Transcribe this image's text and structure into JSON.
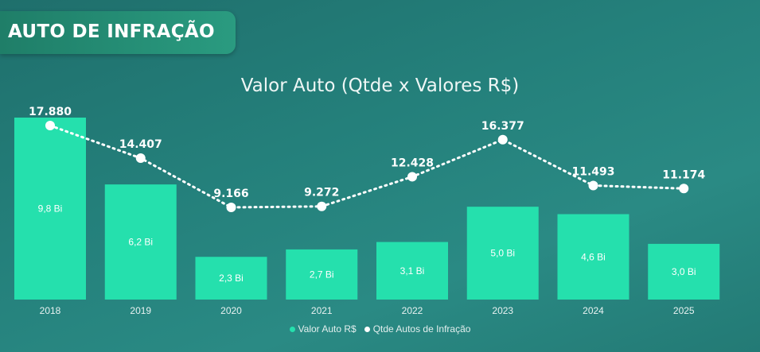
{
  "header": {
    "title": "AUTO DE INFRAÇÃO"
  },
  "colors": {
    "bar": "#25e0ad",
    "line": "#ffffff",
    "label_text": "#ffffff"
  },
  "chart_data": {
    "type": "bar",
    "title": "Valor Auto (Qtde x Valores R$)",
    "categories": [
      "2018",
      "2019",
      "2020",
      "2021",
      "2022",
      "2023",
      "2024",
      "2025"
    ],
    "series": [
      {
        "name": "Valor Auto R$",
        "type": "bar",
        "values": [
          9.8,
          6.2,
          2.3,
          2.7,
          3.1,
          5.0,
          4.6,
          3.0
        ],
        "labels": [
          "9,8 Bi",
          "6,2 Bi",
          "2,3 Bi",
          "2,7 Bi",
          "3,1 Bi",
          "5,0 Bi",
          "4,6 Bi",
          "3,0 Bi"
        ]
      },
      {
        "name": "Qtde Autos de Infração",
        "type": "line",
        "values": [
          17880,
          14407,
          9166,
          9272,
          12428,
          16377,
          11493,
          11174
        ],
        "labels": [
          "17.880",
          "14.407",
          "9.166",
          "9.272",
          "12.428",
          "16.377",
          "11.493",
          "11.174"
        ]
      }
    ],
    "legend": "bottom-center",
    "grid": false
  }
}
